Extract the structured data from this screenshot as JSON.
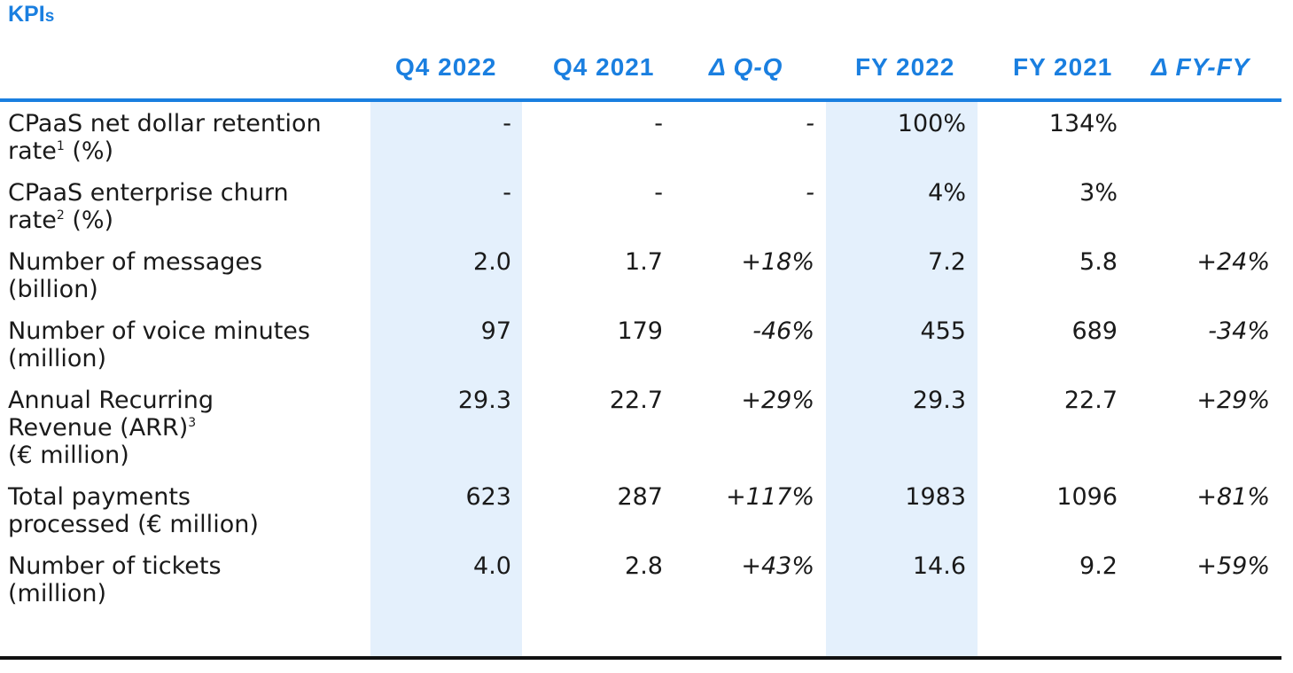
{
  "title_main": "KPI",
  "title_suffix": "s",
  "columns": [
    "Q4 2022",
    "Q4 2021",
    "Δ Q-Q",
    "FY 2022",
    "FY 2021",
    "Δ FY-FY"
  ],
  "rows": [
    {
      "label": "CPaaS net dollar retention",
      "label2": "rate",
      "sup": "1",
      "label3": " (%)",
      "values": [
        "-",
        "-",
        "-",
        "100%",
        "134%",
        ""
      ]
    },
    {
      "label": "CPaaS enterprise churn",
      "label2": "rate",
      "sup": "2",
      "label3": " (%)",
      "values": [
        "-",
        "-",
        "-",
        "4%",
        "3%",
        ""
      ]
    },
    {
      "label": "Number of messages",
      "label2": "(billion)",
      "values": [
        "2.0",
        "1.7",
        "+18%",
        "7.2",
        "5.8",
        "+24%"
      ]
    },
    {
      "label": "Number of voice minutes",
      "label2": "(million)",
      "values": [
        "97",
        "179",
        "-46%",
        "455",
        "689",
        "-34%"
      ]
    },
    {
      "label": "Annual Recurring",
      "label2": "Revenue (ARR)",
      "sup": "3",
      "label3": "(€ million)",
      "values": [
        "29.3",
        "22.7",
        "+29%",
        "29.3",
        "22.7",
        "+29%"
      ]
    },
    {
      "label": "Total payments",
      "label2": "processed (€ million)",
      "values": [
        "623",
        "287",
        "+117%",
        "1983",
        "1096",
        "+81%"
      ]
    },
    {
      "label": "Number of tickets",
      "label2": "(million)",
      "values": [
        "4.0",
        "2.8",
        "+43%",
        "14.6",
        "9.2",
        "+59%"
      ]
    }
  ],
  "colors": {
    "accent": "#1a7fe0",
    "highlight": "#e4f0fc",
    "text": "#1a1a1a"
  }
}
